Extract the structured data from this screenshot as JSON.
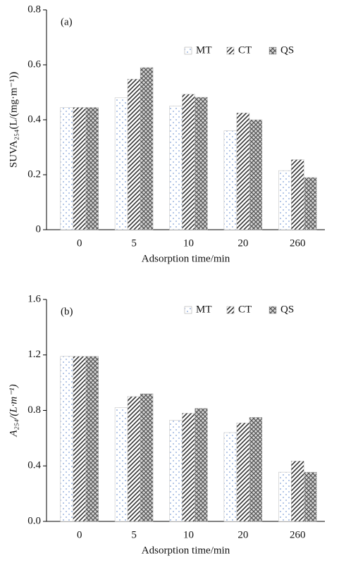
{
  "chart_data": [
    {
      "type": "bar",
      "annotation": "(a)",
      "ylabel": "SUVA₂₅₄(L/(mg·m⁻¹))",
      "xlabel": "Adsorption time/min",
      "categories": [
        "0",
        "5",
        "10",
        "20",
        "260"
      ],
      "series": [
        {
          "name": "MT",
          "color": "#7f9fd6",
          "values": [
            0.445,
            0.48,
            0.45,
            0.36,
            0.215
          ]
        },
        {
          "name": "CT",
          "color": "#333333",
          "values": [
            0.445,
            0.548,
            0.493,
            0.425,
            0.255
          ]
        },
        {
          "name": "QS",
          "color": "#555555",
          "values": [
            0.445,
            0.59,
            0.482,
            0.4,
            0.19
          ]
        }
      ],
      "ylim": [
        0,
        0.8
      ],
      "yticks": [
        0,
        0.2,
        0.4,
        0.6,
        0.8
      ],
      "legend": "upper right"
    },
    {
      "type": "bar",
      "annotation": "(b)",
      "ylabel": "A₂₅₄/(L·m⁻¹)",
      "xlabel": "Adsorption time/min",
      "categories": [
        "0",
        "5",
        "10",
        "20",
        "260"
      ],
      "series": [
        {
          "name": "MT",
          "color": "#7f9fd6",
          "values": [
            1.19,
            0.82,
            0.73,
            0.64,
            0.355
          ]
        },
        {
          "name": "CT",
          "color": "#333333",
          "values": [
            1.19,
            0.9,
            0.78,
            0.71,
            0.435
          ]
        },
        {
          "name": "QS",
          "color": "#555555",
          "values": [
            1.19,
            0.92,
            0.815,
            0.75,
            0.355
          ]
        }
      ],
      "ylim": [
        0,
        1.6
      ],
      "yticks": [
        {
          "value": 0,
          "label": "0.0"
        },
        0.4,
        0.8,
        1.2,
        1.6
      ],
      "legend": "upper right"
    }
  ]
}
